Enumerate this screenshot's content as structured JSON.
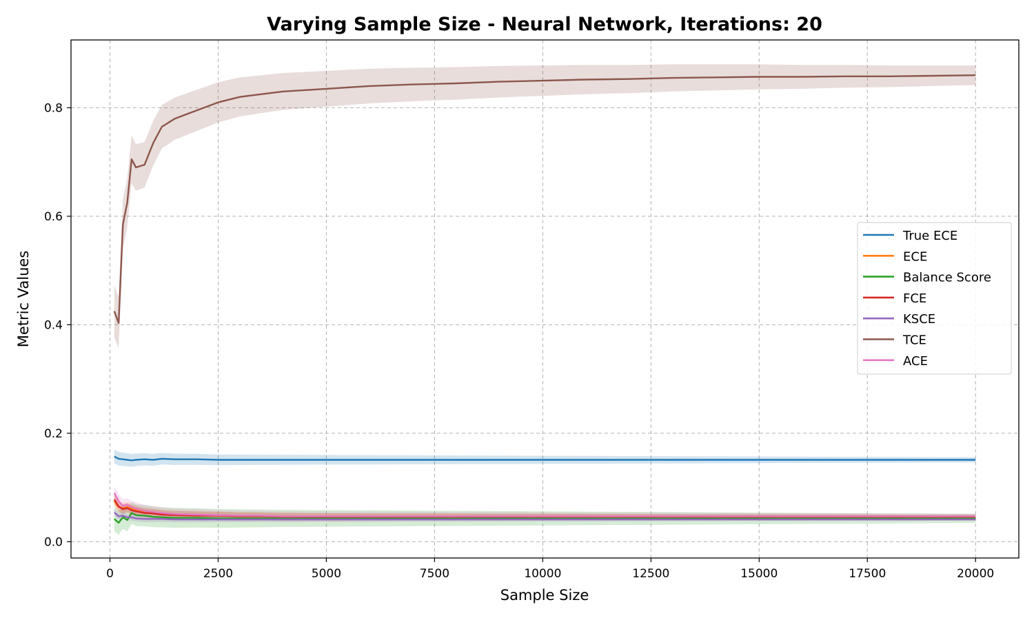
{
  "chart_data": {
    "type": "line",
    "title": "Varying Sample Size - Neural Network, Iterations: 20",
    "xlabel": "Sample Size",
    "ylabel": "Metric Values",
    "xlim": [
      -900,
      21000
    ],
    "ylim": [
      -0.03,
      0.925
    ],
    "xticks": [
      0,
      2500,
      5000,
      7500,
      10000,
      12500,
      15000,
      17500,
      20000
    ],
    "xtick_labels": [
      "0",
      "2500",
      "5000",
      "7500",
      "10000",
      "12500",
      "15000",
      "17500",
      "20000"
    ],
    "yticks": [
      0.0,
      0.2,
      0.4,
      0.6,
      0.8
    ],
    "ytick_labels": [
      "0.0",
      "0.2",
      "0.4",
      "0.6",
      "0.8"
    ],
    "grid": true,
    "legend_position": "center-right",
    "x": [
      100,
      200,
      300,
      400,
      500,
      600,
      800,
      1000,
      1200,
      1500,
      2000,
      2500,
      3000,
      3500,
      4000,
      5000,
      6000,
      7000,
      8000,
      9000,
      10000,
      11000,
      12000,
      13000,
      14000,
      15000,
      16000,
      17000,
      18000,
      19000,
      20000
    ],
    "series": [
      {
        "name": "True ECE",
        "color": "#1f77b4",
        "values": [
          0.157,
          0.153,
          0.152,
          0.151,
          0.15,
          0.151,
          0.152,
          0.151,
          0.153,
          0.152,
          0.152,
          0.151,
          0.151,
          0.151,
          0.151,
          0.151,
          0.151,
          0.151,
          0.151,
          0.151,
          0.151,
          0.151,
          0.151,
          0.151,
          0.151,
          0.151,
          0.151,
          0.151,
          0.151,
          0.151,
          0.151
        ],
        "band": 0.008
      },
      {
        "name": "ECE",
        "color": "#ff7f0e",
        "values": [
          0.075,
          0.064,
          0.062,
          0.064,
          0.061,
          0.058,
          0.055,
          0.053,
          0.051,
          0.05,
          0.049,
          0.048,
          0.047,
          0.047,
          0.047,
          0.046,
          0.046,
          0.046,
          0.046,
          0.046,
          0.046,
          0.046,
          0.046,
          0.046,
          0.046,
          0.046,
          0.046,
          0.046,
          0.046,
          0.046,
          0.046
        ],
        "band": 0.006
      },
      {
        "name": "Balance Score",
        "color": "#2ca02c",
        "values": [
          0.042,
          0.035,
          0.045,
          0.04,
          0.053,
          0.049,
          0.048,
          0.046,
          0.045,
          0.044,
          0.044,
          0.043,
          0.043,
          0.043,
          0.043,
          0.043,
          0.043,
          0.043,
          0.043,
          0.043,
          0.043,
          0.043,
          0.043,
          0.043,
          0.043,
          0.043,
          0.043,
          0.043,
          0.043,
          0.043,
          0.043
        ],
        "band": 0.014
      },
      {
        "name": "FCE",
        "color": "#d62728",
        "values": [
          0.078,
          0.065,
          0.06,
          0.062,
          0.058,
          0.056,
          0.053,
          0.052,
          0.05,
          0.049,
          0.048,
          0.048,
          0.047,
          0.047,
          0.046,
          0.046,
          0.046,
          0.046,
          0.046,
          0.046,
          0.046,
          0.046,
          0.046,
          0.046,
          0.046,
          0.046,
          0.046,
          0.046,
          0.046,
          0.046,
          0.046
        ],
        "band": 0.006
      },
      {
        "name": "KSCE",
        "color": "#9467bd",
        "values": [
          0.054,
          0.047,
          0.048,
          0.045,
          0.045,
          0.043,
          0.042,
          0.042,
          0.042,
          0.041,
          0.041,
          0.041,
          0.041,
          0.041,
          0.041,
          0.041,
          0.041,
          0.041,
          0.041,
          0.041,
          0.041,
          0.041,
          0.041,
          0.041,
          0.041,
          0.041,
          0.041,
          0.041,
          0.041,
          0.041,
          0.041
        ],
        "band": 0.004
      },
      {
        "name": "TCE",
        "color": "#8c564b",
        "values": [
          0.425,
          0.403,
          0.585,
          0.625,
          0.705,
          0.69,
          0.695,
          0.735,
          0.765,
          0.78,
          0.795,
          0.81,
          0.82,
          0.825,
          0.83,
          0.835,
          0.84,
          0.843,
          0.845,
          0.848,
          0.85,
          0.852,
          0.853,
          0.855,
          0.856,
          0.857,
          0.857,
          0.858,
          0.858,
          0.859,
          0.86
        ],
        "band": 0.03
      },
      {
        "name": "ACE",
        "color": "#e377c2",
        "values": [
          0.09,
          0.075,
          0.066,
          0.068,
          0.064,
          0.061,
          0.057,
          0.055,
          0.053,
          0.051,
          0.05,
          0.049,
          0.048,
          0.048,
          0.047,
          0.047,
          0.047,
          0.047,
          0.047,
          0.047,
          0.047,
          0.047,
          0.047,
          0.047,
          0.047,
          0.047,
          0.047,
          0.047,
          0.047,
          0.047,
          0.047
        ],
        "band": 0.008
      }
    ]
  }
}
